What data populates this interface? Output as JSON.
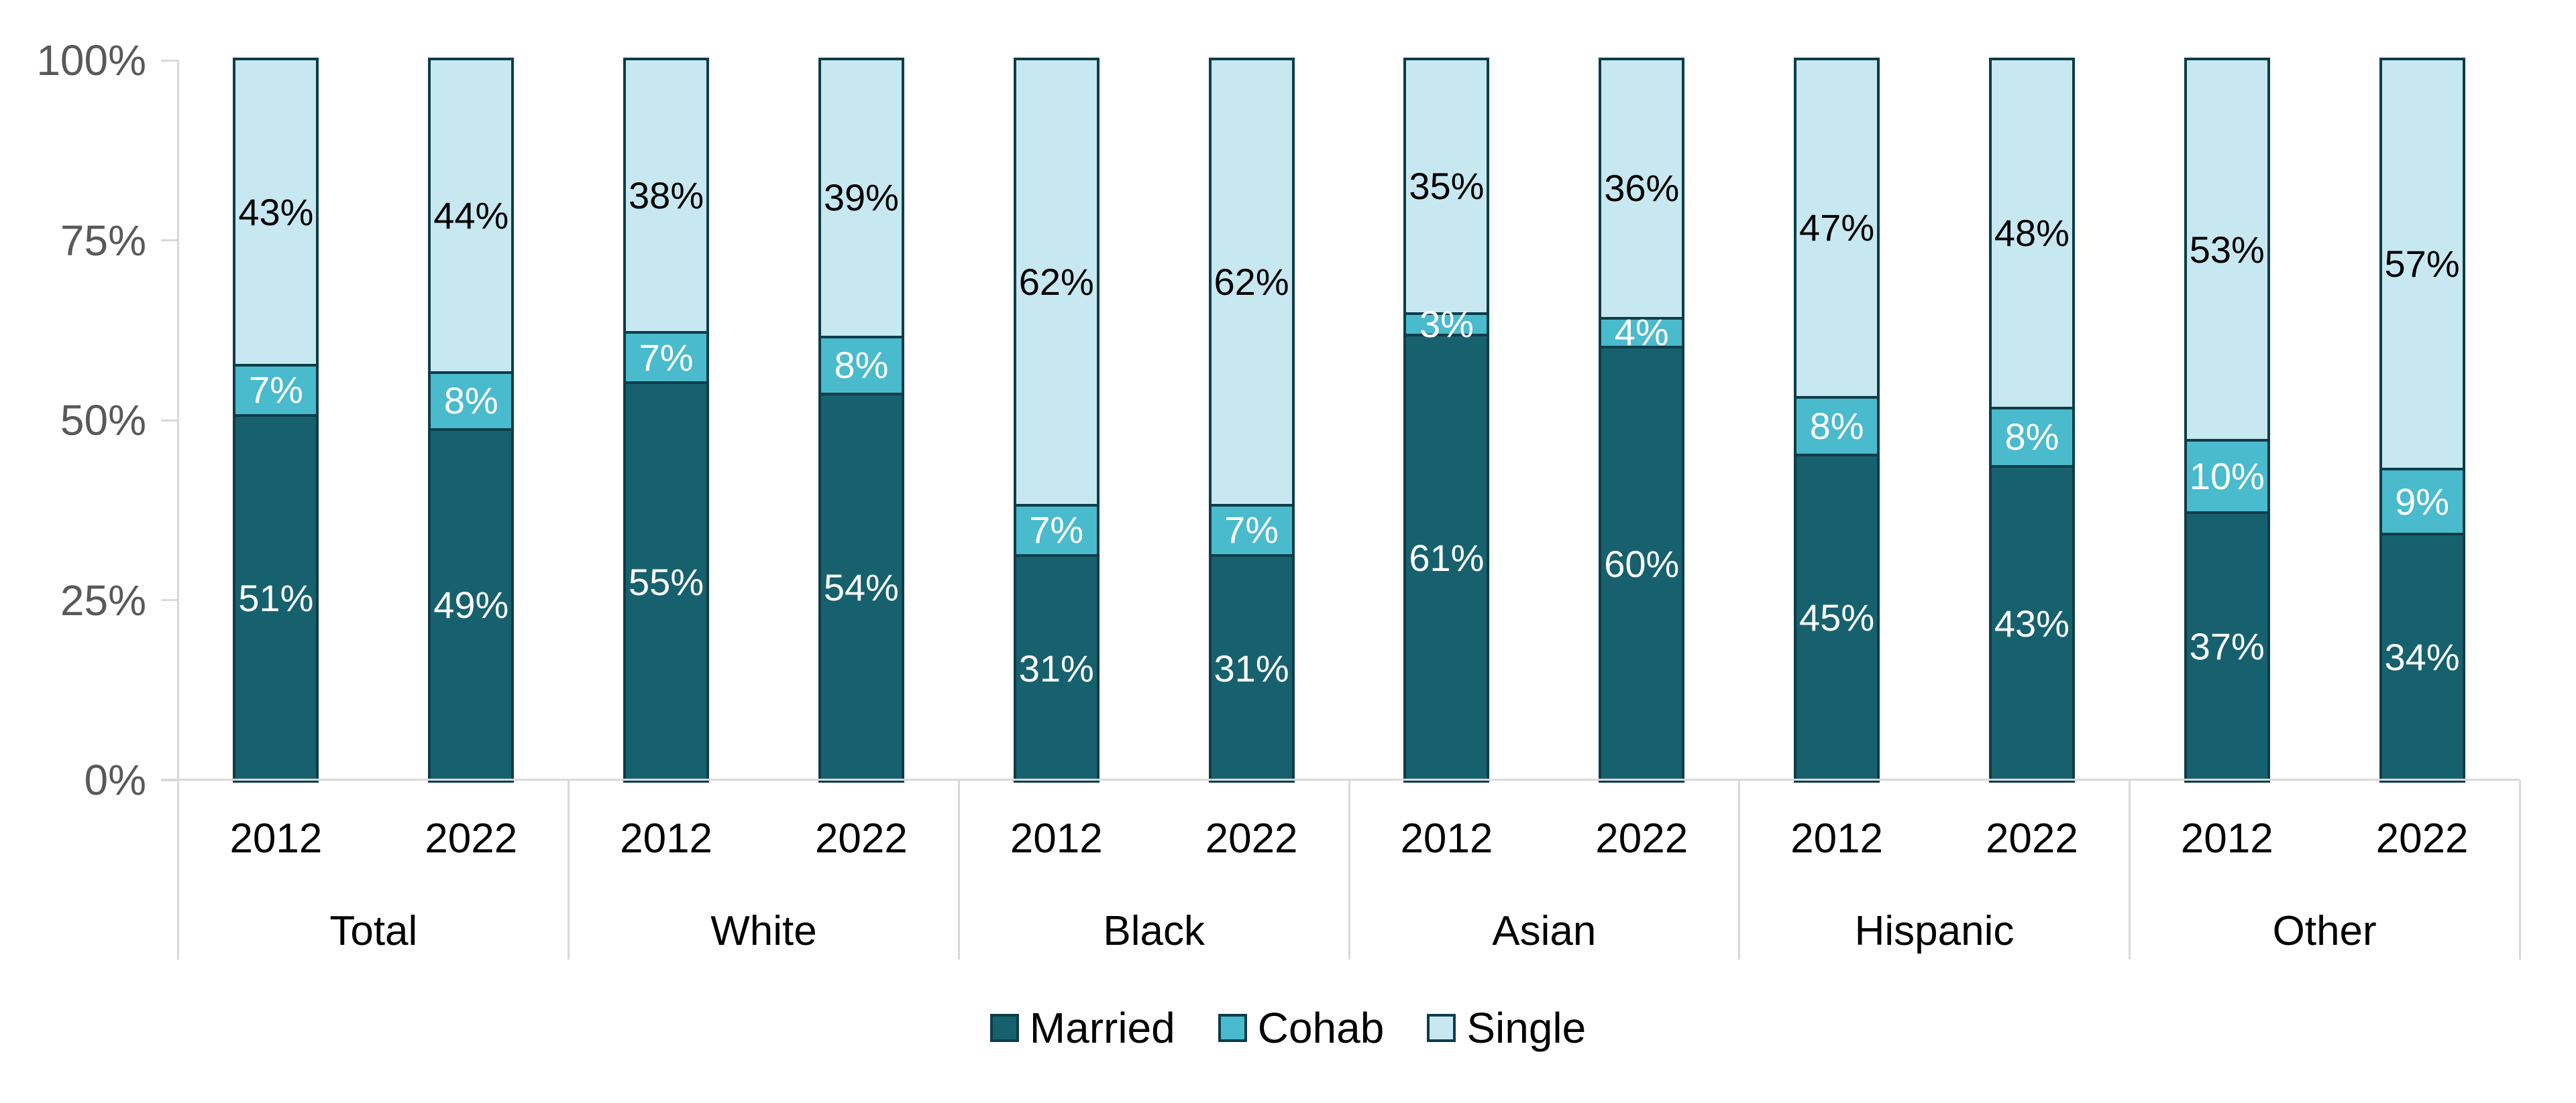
{
  "chart_data": {
    "type": "bar",
    "stacked": true,
    "units": "percent",
    "title": "",
    "categories": [
      "Total",
      "White",
      "Black",
      "Asian",
      "Hispanic",
      "Other"
    ],
    "x_sublabels": [
      "2012",
      "2022"
    ],
    "y_axis": {
      "ticks": [
        "0%",
        "25%",
        "50%",
        "75%",
        "100%"
      ],
      "tick_values": [
        0,
        25,
        50,
        75,
        100
      ],
      "range": [
        0,
        100
      ],
      "label_color": "#595959"
    },
    "gridlines": false,
    "legend_position": "bottom",
    "series": [
      {
        "name": "Married",
        "color": "#17616E",
        "label_text_color": "#FFFFFF",
        "values": [
          [
            51,
            49
          ],
          [
            55,
            54
          ],
          [
            31,
            31
          ],
          [
            61,
            60
          ],
          [
            45,
            43
          ],
          [
            37,
            34
          ]
        ]
      },
      {
        "name": "Cohab",
        "color": "#4ABACD",
        "label_text_color": "#FFFFFF",
        "values": [
          [
            7,
            8
          ],
          [
            7,
            8
          ],
          [
            7,
            7
          ],
          [
            3,
            4
          ],
          [
            8,
            8
          ],
          [
            10,
            9
          ]
        ]
      },
      {
        "name": "Single",
        "color": "#C8E8F1",
        "label_text_color": "#000000",
        "values": [
          [
            43,
            44
          ],
          [
            38,
            39
          ],
          [
            62,
            62
          ],
          [
            35,
            36
          ],
          [
            47,
            48
          ],
          [
            53,
            57
          ]
        ]
      }
    ],
    "bar_border_color": "#0D3D49",
    "axis_line_color": "#D9D9D9",
    "data_label_suffix": "%"
  },
  "legend": {
    "items": [
      {
        "label": "Married"
      },
      {
        "label": "Cohab"
      },
      {
        "label": "Single"
      }
    ]
  }
}
